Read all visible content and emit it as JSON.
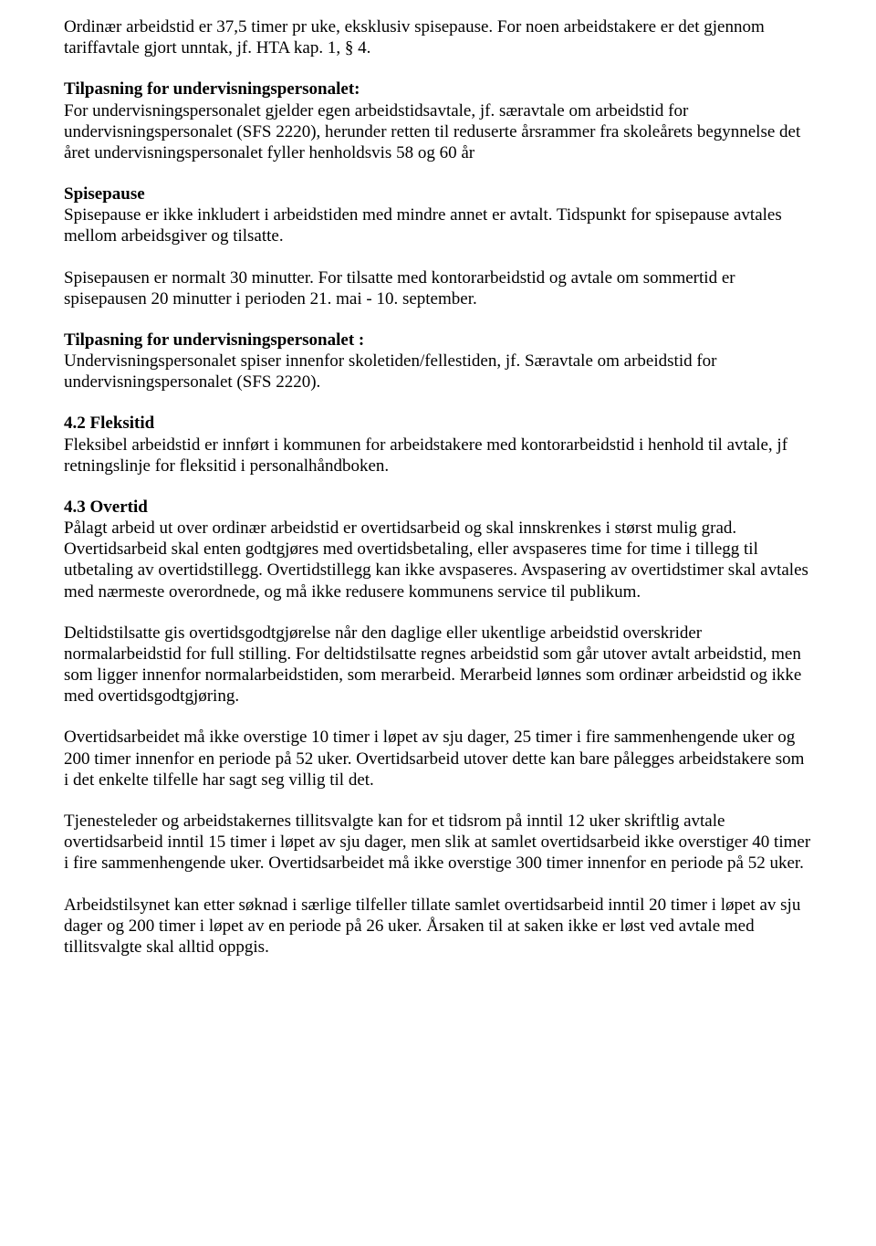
{
  "p1": "Ordinær arbeidstid er 37,5 timer pr uke, eksklusiv spisepause. For noen arbeidstakere er det gjennom tariffavtale gjort unntak, jf. HTA kap. 1, § 4.",
  "h1": "Tilpasning for undervisningspersonalet:",
  "p2": "For undervisningspersonalet gjelder egen arbeidstidsavtale, jf. særavtale om arbeidstid for undervisningspersonalet (SFS 2220), herunder retten til reduserte årsrammer fra skoleårets begynnelse det året undervisningspersonalet fyller henholdsvis 58 og 60 år",
  "h2": "Spisepause",
  "p3": "Spisepause er ikke inkludert i arbeidstiden med mindre annet er avtalt. Tidspunkt for spisepause avtales mellom arbeidsgiver og tilsatte.",
  "p4": "Spisepausen er normalt 30 minutter. For tilsatte med kontorarbeidstid og avtale om sommertid er spisepausen 20 minutter i perioden 21. mai - 10. september.",
  "h3": "Tilpasning for undervisningspersonalet :",
  "p5": "Undervisningspersonalet spiser innenfor skoletiden/fellestiden, jf. Særavtale om arbeidstid for undervisningspersonalet (SFS 2220).",
  "h4": "4.2 Fleksitid",
  "p6": "Fleksibel arbeidstid er innført i kommunen for arbeidstakere med kontorarbeidstid i henhold til avtale, jf retningslinje for fleksitid i personalhåndboken.",
  "h5": "4.3 Overtid",
  "p7": "Pålagt arbeid ut over ordinær arbeidstid er overtidsarbeid og skal innskrenkes i størst mulig grad. Overtidsarbeid skal enten godtgjøres med overtidsbetaling, eller avspaseres time for time i tillegg til utbetaling av overtidstillegg. Overtidstillegg kan ikke avspaseres. Avspasering av overtidstimer skal avtales med nærmeste overordnede, og må ikke redusere kommunens service til publikum.",
  "p8": "Deltidstilsatte gis overtidsgodtgjørelse når den daglige eller ukentlige arbeidstid overskrider normalarbeidstid for full stilling. For deltidstilsatte regnes arbeidstid som går utover avtalt arbeidstid, men som ligger innenfor normalarbeidstiden, som merarbeid. Merarbeid lønnes som ordinær arbeidstid og ikke med overtidsgodtgjøring.",
  "p9": "Overtidsarbeidet må ikke overstige 10 timer i løpet av sju dager, 25 timer i fire sammenhengende uker og 200 timer innenfor en periode på 52 uker. Overtidsarbeid utover dette kan bare pålegges arbeidstakere som i det enkelte tilfelle har sagt seg villig til det.",
  "p10": "Tjenesteleder og arbeidstakernes tillitsvalgte kan for et tidsrom på inntil 12 uker skriftlig avtale overtidsarbeid inntil 15 timer i løpet av sju dager, men slik at samlet overtidsarbeid ikke overstiger 40 timer i fire sammenhengende uker. Overtidsarbeidet må ikke overstige 300 timer innenfor en periode på 52 uker.",
  "p11": "Arbeidstilsynet kan etter søknad i særlige tilfeller tillate samlet overtidsarbeid inntil 20 timer i løpet av sju dager og 200 timer i løpet av en periode på 26 uker. Årsaken til at saken ikke er løst ved avtale med tillitsvalgte skal alltid oppgis."
}
